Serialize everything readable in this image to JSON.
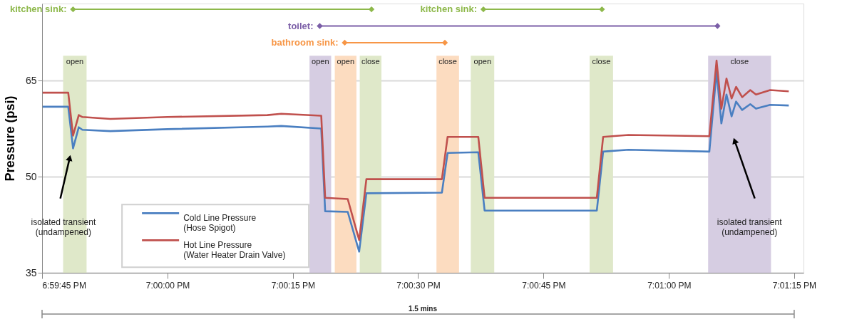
{
  "chart_data": {
    "type": "line",
    "ylabel": "Pressure (psi)",
    "grid": "y",
    "legend": "bottom left",
    "line_style": "solid",
    "x": [
      18.99585,
      18.9967,
      18.99686,
      18.99705,
      18.99717,
      18.9981,
      19.0,
      19.00332,
      19.00378,
      19.00511,
      19.00524,
      19.00599,
      19.00637,
      19.00661,
      19.00912,
      19.00931,
      19.01033,
      19.01054,
      19.01427,
      19.01448,
      19.01532,
      19.01801,
      19.01825,
      19.01841,
      19.01858,
      19.01875,
      19.0189,
      19.0191,
      19.01937,
      19.01956,
      19.02003,
      19.02065
    ],
    "series": [
      {
        "name": "Cold Line Pressure\n(Hose Spigot)",
        "color": "#4a7fc1",
        "values": [
          60.9,
          60.9,
          54.4,
          57.7,
          57.3,
          57.1,
          57.4,
          57.8,
          57.9,
          57.5,
          44.6,
          44.5,
          38.3,
          47.4,
          47.5,
          53.7,
          53.8,
          44.7,
          44.7,
          53.9,
          54.2,
          53.9,
          66.4,
          58.3,
          62.8,
          59.4,
          61.7,
          60.4,
          61.3,
          60.6,
          61.2,
          61.1
        ]
      },
      {
        "name": "Hot Line Pressure\n(Water Heater Drain Valve)",
        "color": "#c0504d",
        "values": [
          63.1,
          63.1,
          56.4,
          59.6,
          59.3,
          59.0,
          59.3,
          59.6,
          59.8,
          59.5,
          46.7,
          46.5,
          40.1,
          49.6,
          49.6,
          56.2,
          56.2,
          46.7,
          46.7,
          56.2,
          56.5,
          56.3,
          68.1,
          60.6,
          65.3,
          62.2,
          64.0,
          62.4,
          63.5,
          62.8,
          63.5,
          63.3
        ]
      },
      {
        "name": "kitchen sink:",
        "type": "line",
        "marker": "diamond",
        "color": "#8db84a",
        "x": [
          18.99686,
          19.00678
        ],
        "values": [
          76.1,
          76.1
        ]
      },
      {
        "name": "toilet:",
        "type": "line",
        "marker": "diamond",
        "color": "#7b5ea7",
        "x": [
          19.00506,
          19.01828
        ],
        "values": [
          73.5,
          73.5
        ]
      },
      {
        "name": "bathroom sink:",
        "type": "line",
        "marker": "diamond",
        "color": "#f79646",
        "x": [
          19.00589,
          19.00922
        ],
        "values": [
          70.9,
          70.9
        ]
      },
      {
        "name": "kitchen sink:",
        "type": "line",
        "marker": "diamond",
        "color": "#8db84a",
        "x": [
          19.0105,
          19.01444
        ],
        "values": [
          76.1,
          76.1
        ]
      }
    ],
    "xlim": [
      18.99583,
      19.02114
    ],
    "xticks": [
      {
        "value": 18.99583,
        "label": "6:59:45 PM"
      },
      {
        "value": 19.0,
        "label": "7:00:00 PM"
      },
      {
        "value": 19.00417,
        "label": "7:00:15 PM"
      },
      {
        "value": 19.00833,
        "label": "7:00:30 PM"
      },
      {
        "value": 19.0125,
        "label": "7:00:45 PM"
      },
      {
        "value": 19.01667,
        "label": "7:01:00 PM"
      },
      {
        "value": 19.02083,
        "label": "7:01:15 PM"
      }
    ],
    "ylim": [
      35,
      77
    ],
    "yticks": [
      35,
      50,
      65
    ],
    "bands": [
      {
        "axis": "x",
        "from": 18.99653,
        "to": 18.99731,
        "label": "open",
        "color": "#dfe8c9"
      },
      {
        "axis": "x",
        "from": 19.00472,
        "to": 19.00544,
        "label": "open",
        "color": "#d6cde2"
      },
      {
        "axis": "x",
        "from": 19.00556,
        "to": 19.00628,
        "label": "open",
        "color": "#fcdcc0"
      },
      {
        "axis": "x",
        "from": 19.00639,
        "to": 19.00711,
        "label": "close",
        "color": "#dfe8c9"
      },
      {
        "axis": "x",
        "from": 19.00894,
        "to": 19.00969,
        "label": "close",
        "color": "#fcdcc0"
      },
      {
        "axis": "x",
        "from": 19.01008,
        "to": 19.01086,
        "label": "open",
        "color": "#dfe8c9"
      },
      {
        "axis": "x",
        "from": 19.01403,
        "to": 19.01481,
        "label": "close",
        "color": "#dfe8c9"
      },
      {
        "axis": "x",
        "from": 19.01797,
        "to": 19.02006,
        "label": "close",
        "color": "#d6cde2"
      }
    ],
    "annotations": [
      "isolated transient\n(undampened)",
      "isolated transient\n(undampened)",
      "1.5 mins"
    ]
  }
}
